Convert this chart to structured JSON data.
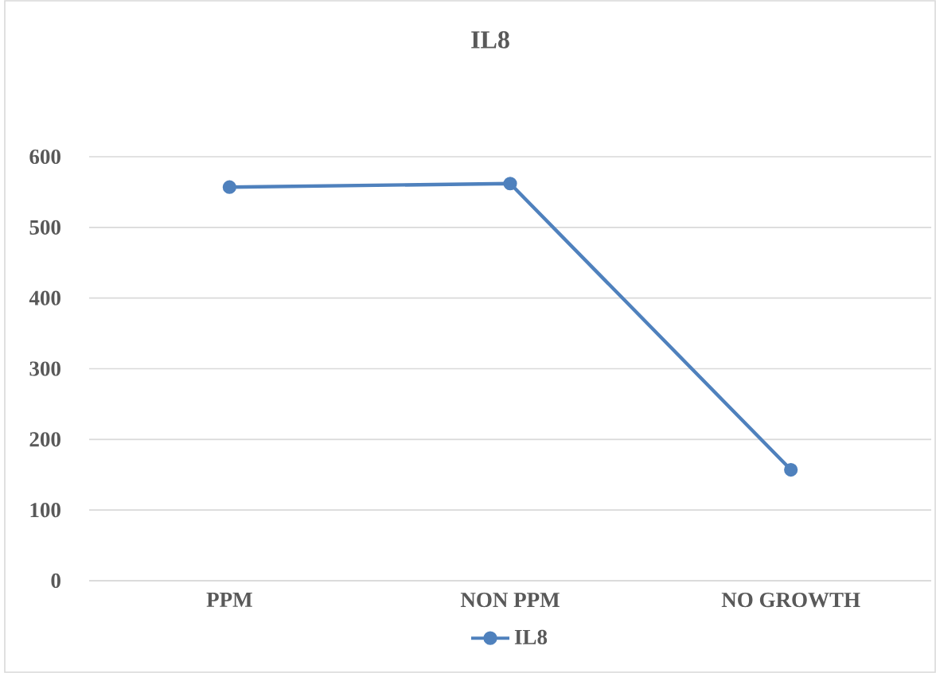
{
  "chart_data": {
    "type": "line",
    "title": "IL8",
    "categories": [
      "PPM",
      "NON PPM",
      "NO GROWTH"
    ],
    "series": [
      {
        "name": "IL8",
        "color": "#4f81bd",
        "values": [
          557,
          562,
          157
        ]
      }
    ],
    "ylim": [
      0,
      600
    ],
    "yticks": [
      0,
      100,
      200,
      300,
      400,
      500,
      600
    ],
    "grid": "y",
    "legend": "bottom",
    "marker": "circle",
    "line_style": "solid"
  }
}
